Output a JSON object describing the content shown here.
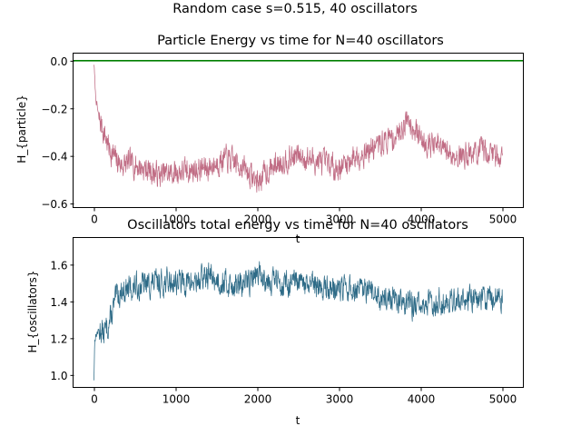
{
  "figure": {
    "suptitle": "Random case s=0.515, 40 oscillators"
  },
  "chart_data": [
    {
      "type": "line",
      "title": "Particle Energy vs time for N=40 oscillators",
      "xlabel": "t",
      "ylabel": "H_{particle}",
      "xlim": [
        -250,
        5250
      ],
      "ylim": [
        -0.615,
        0.03
      ],
      "xticks": [
        0,
        1000,
        2000,
        3000,
        4000,
        5000
      ],
      "yticks": [
        0.0,
        -0.2,
        -0.4,
        -0.6
      ],
      "ytick_labels": [
        "0.0",
        "−0.2",
        "−0.4",
        "−0.6"
      ],
      "grid": false,
      "reference_line": {
        "y": 0.0,
        "color": "#007f00"
      },
      "series": [
        {
          "color": "#c06c84",
          "noise": 0.045,
          "seed": 7,
          "keypoints": {
            "x": [
              0,
              20,
              60,
              100,
              150,
              200,
              280,
              350,
              450,
              600,
              800,
              1000,
              1200,
              1400,
              1600,
              1800,
              2000,
              2100,
              2300,
              2500,
              2700,
              2900,
              3000,
              3200,
              3400,
              3600,
              3700,
              3800,
              3850,
              3900,
              4000,
              4200,
              4400,
              4600,
              4800,
              5000
            ],
            "y": [
              -0.01,
              -0.15,
              -0.24,
              -0.28,
              -0.33,
              -0.38,
              -0.42,
              -0.44,
              -0.43,
              -0.45,
              -0.48,
              -0.47,
              -0.46,
              -0.45,
              -0.41,
              -0.44,
              -0.51,
              -0.47,
              -0.42,
              -0.4,
              -0.42,
              -0.44,
              -0.45,
              -0.4,
              -0.37,
              -0.33,
              -0.32,
              -0.26,
              -0.24,
              -0.27,
              -0.33,
              -0.36,
              -0.4,
              -0.39,
              -0.38,
              -0.4
            ]
          }
        }
      ]
    },
    {
      "type": "line",
      "title": "Oscillators total energy vs time for N=40 oscillators",
      "xlabel": "t",
      "ylabel": "H_{oscillators}",
      "xlim": [
        -250,
        5250
      ],
      "ylim": [
        0.935,
        1.745
      ],
      "xticks": [
        0,
        1000,
        2000,
        3000,
        4000,
        5000
      ],
      "yticks": [
        1.0,
        1.2,
        1.4,
        1.6
      ],
      "ytick_labels": [
        "1.0",
        "1.2",
        "1.4",
        "1.6"
      ],
      "grid": false,
      "series": [
        {
          "color": "#2e6b87",
          "noise": 0.06,
          "seed": 13,
          "keypoints": {
            "x": [
              0,
              10,
              40,
              80,
              120,
              200,
              280,
              350,
              450,
              600,
              800,
              1000,
              1200,
              1400,
              1600,
              1800,
              2000,
              2100,
              2300,
              2500,
              2700,
              3000,
              3200,
              3400,
              3600,
              3800,
              3900,
              4000,
              4200,
              4400,
              4600,
              4800,
              5000
            ],
            "y": [
              0.98,
              1.2,
              1.23,
              1.25,
              1.22,
              1.3,
              1.43,
              1.46,
              1.47,
              1.49,
              1.5,
              1.51,
              1.5,
              1.54,
              1.5,
              1.48,
              1.55,
              1.53,
              1.5,
              1.49,
              1.48,
              1.47,
              1.46,
              1.44,
              1.42,
              1.4,
              1.38,
              1.37,
              1.4,
              1.41,
              1.42,
              1.42,
              1.43
            ]
          }
        }
      ]
    }
  ]
}
